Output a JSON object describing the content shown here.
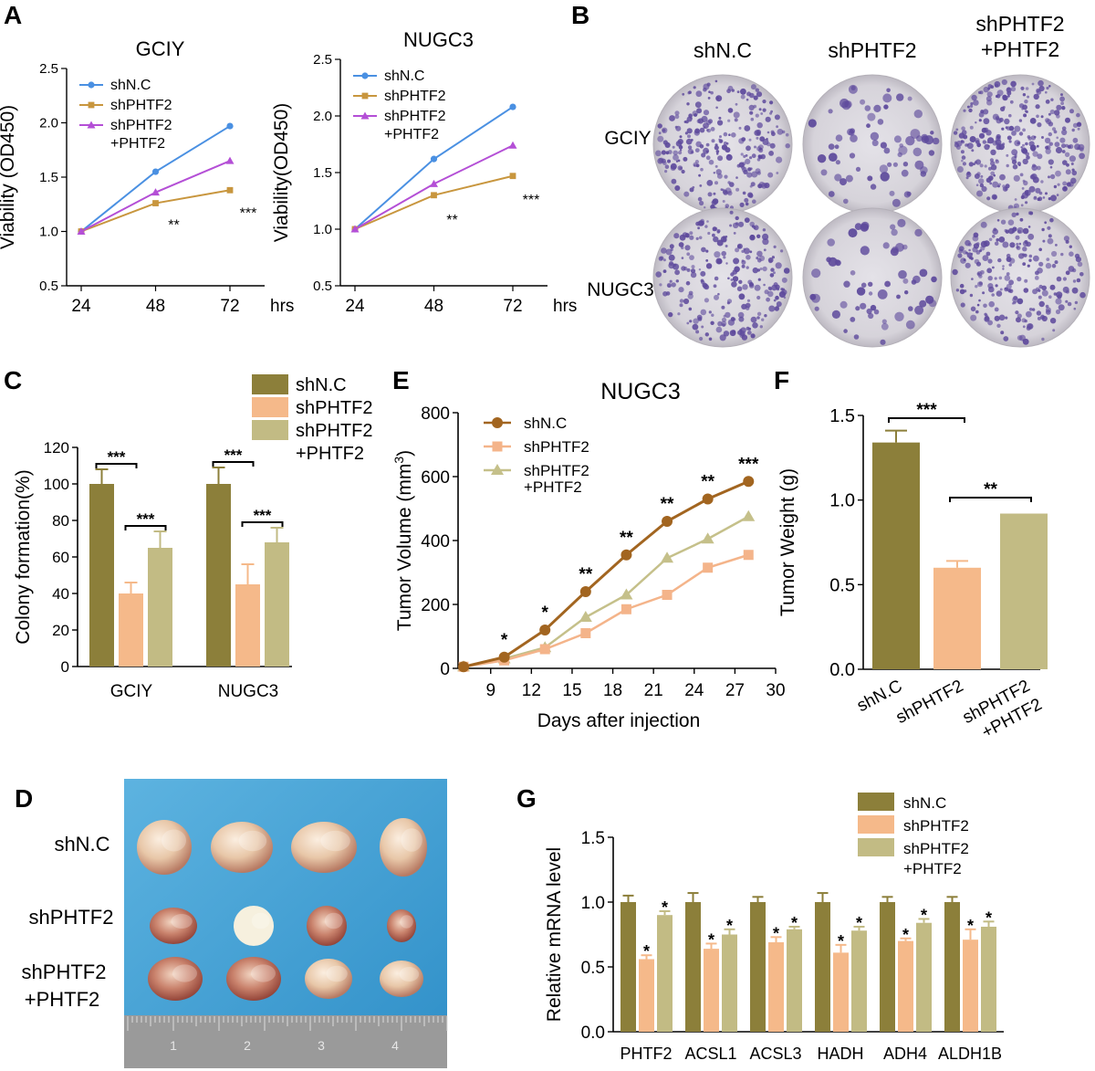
{
  "panel_letters": [
    "A",
    "B",
    "C",
    "D",
    "E",
    "F",
    "G"
  ],
  "colors": {
    "shNC_line": "#4a90e2",
    "shPHTF2_line": "#c8963e",
    "rescue_line": "#b44fd6",
    "olive": "#8c7f3a",
    "salmon": "#f5b98a",
    "khaki": "#c2bb84",
    "brown": "#a26520",
    "lightorange": "#f4b48a",
    "tan": "#c5c08a",
    "plate_bg": "#dcd9df",
    "colony": "#5e4a9c",
    "blue_board": "#3aa0d6"
  },
  "panel_B": {
    "col_labels": [
      "shN.C",
      "shPHTF2",
      "shPHTF2",
      "+PHTF2"
    ],
    "row_labels": [
      "GCIY",
      "NUGC3"
    ],
    "plate_density": [
      [
        260,
        70,
        300
      ],
      [
        240,
        60,
        230
      ]
    ]
  },
  "panel_D": {
    "row_labels": [
      "shN.C",
      "shPHTF2",
      "shPHTF2",
      "+PHTF2"
    ],
    "tumor_icon": "tumor-photo",
    "ruler_ticks": [
      "1",
      "2",
      "3",
      "4"
    ]
  },
  "chart_data": [
    {
      "id": "A1",
      "type": "line",
      "title": "GCIY",
      "ylabel": "Viability (OD450)",
      "xunit": "hrs",
      "x": [
        24,
        48,
        72
      ],
      "ylim": [
        0.5,
        2.5
      ],
      "yticks": [
        "0.5",
        "1.0",
        "1.5",
        "2.0",
        "2.5"
      ],
      "series": [
        {
          "name": "shN.C",
          "values": [
            1.0,
            1.55,
            1.97
          ]
        },
        {
          "name": "shPHTF2",
          "values": [
            1.0,
            1.26,
            1.38
          ]
        },
        {
          "name": "shPHTF2",
          "name2": "+PHTF2",
          "values": [
            1.0,
            1.36,
            1.65
          ]
        }
      ],
      "annotations": [
        {
          "x": 48,
          "y": 1.1,
          "text": "**"
        },
        {
          "x": 72,
          "y": 1.21,
          "text": "***"
        }
      ]
    },
    {
      "id": "A2",
      "type": "line",
      "title": "NUGC3",
      "ylabel": "Viability(OD450)",
      "xunit": "hrs",
      "x": [
        24,
        48,
        72
      ],
      "ylim": [
        0.5,
        2.5
      ],
      "yticks": [
        "0.5",
        "1.0",
        "1.5",
        "2.0",
        "2.5"
      ],
      "series": [
        {
          "name": "shN.C",
          "values": [
            1.0,
            1.62,
            2.08
          ]
        },
        {
          "name": "shPHTF2",
          "values": [
            1.0,
            1.3,
            1.47
          ]
        },
        {
          "name": "shPHTF2",
          "name2": "+PHTF2",
          "values": [
            1.0,
            1.4,
            1.74
          ]
        }
      ],
      "annotations": [
        {
          "x": 48,
          "y": 1.12,
          "text": "**"
        },
        {
          "x": 72,
          "y": 1.3,
          "text": "***"
        }
      ]
    },
    {
      "id": "C",
      "type": "bar",
      "ylabel": "Colony formation(%)",
      "categories": [
        "GCIY",
        "NUGC3"
      ],
      "ylim": [
        0,
        120
      ],
      "yticks": [
        "0",
        "20",
        "40",
        "60",
        "80",
        "100",
        "120"
      ],
      "series": [
        {
          "name": "shN.C",
          "values": [
            100,
            100
          ],
          "errors": [
            8,
            9
          ]
        },
        {
          "name": "shPHTF2",
          "values": [
            40,
            45
          ],
          "errors": [
            6,
            11
          ]
        },
        {
          "name": "shPHTF2",
          "name2": "+PHTF2",
          "values": [
            65,
            68
          ],
          "errors": [
            9,
            8
          ]
        }
      ],
      "sig_labels": [
        "***",
        "***",
        "***",
        "***"
      ]
    },
    {
      "id": "E",
      "type": "line",
      "title": "NUGC3",
      "ylabel": "Tumor Volume (mm",
      "ylabel_sup": "3",
      "ylabel_end": ")",
      "xlabel": "Days after injection",
      "x": [
        7,
        10,
        13,
        16,
        19,
        22,
        25,
        28
      ],
      "xlim": [
        7,
        30
      ],
      "xticks": [
        "9",
        "12",
        "15",
        "18",
        "21",
        "24",
        "27",
        "30"
      ],
      "ylim": [
        0,
        800
      ],
      "yticks": [
        "0",
        "200",
        "400",
        "600",
        "800"
      ],
      "series": [
        {
          "name": "shN.C",
          "values": [
            5,
            35,
            120,
            240,
            355,
            460,
            530,
            585
          ]
        },
        {
          "name": "shPHTF2",
          "values": [
            5,
            25,
            60,
            110,
            185,
            230,
            315,
            355
          ]
        },
        {
          "name": "shPHTF2",
          "name2": "+PHTF2",
          "values": [
            5,
            30,
            65,
            160,
            230,
            345,
            405,
            475
          ]
        }
      ],
      "sig_labels": [
        "*",
        "*",
        "**",
        "**",
        "**",
        "**",
        "***"
      ]
    },
    {
      "id": "F",
      "type": "bar",
      "ylabel": "Tumor Weight (g)",
      "categories": [
        "shN.C",
        "shPHTF2",
        "shPHTF2"
      ],
      "category_line2": [
        "",
        "",
        "+PHTF2"
      ],
      "ylim": [
        0,
        1.5
      ],
      "yticks": [
        "0.0",
        "0.5",
        "1.0",
        "1.5"
      ],
      "values": [
        1.34,
        0.6,
        0.92
      ],
      "errors": [
        0.07,
        0.04,
        0.0
      ],
      "sig_labels": [
        "***",
        "**"
      ]
    },
    {
      "id": "G",
      "type": "bar",
      "ylabel": "Relative mRNA level",
      "categories": [
        "PHTF2",
        "ACSL1",
        "ACSL3",
        "HADH",
        "ADH4",
        "ALDH1B"
      ],
      "ylim": [
        0,
        1.5
      ],
      "yticks": [
        "0.0",
        "0.5",
        "1.0",
        "1.5"
      ],
      "series": [
        {
          "name": "shN.C",
          "values": [
            1.0,
            1.0,
            1.0,
            1.0,
            1.0,
            1.0
          ],
          "errors": [
            0.05,
            0.07,
            0.04,
            0.07,
            0.04,
            0.04
          ]
        },
        {
          "name": "shPHTF2",
          "values": [
            0.56,
            0.64,
            0.69,
            0.61,
            0.7,
            0.71
          ],
          "errors": [
            0.03,
            0.04,
            0.04,
            0.06,
            0.02,
            0.08
          ]
        },
        {
          "name": "shPHTF2",
          "name2": "+PHTF2",
          "values": [
            0.9,
            0.75,
            0.79,
            0.78,
            0.84,
            0.81
          ],
          "errors": [
            0.03,
            0.04,
            0.02,
            0.03,
            0.03,
            0.04
          ]
        }
      ],
      "sig_label": "*"
    }
  ]
}
